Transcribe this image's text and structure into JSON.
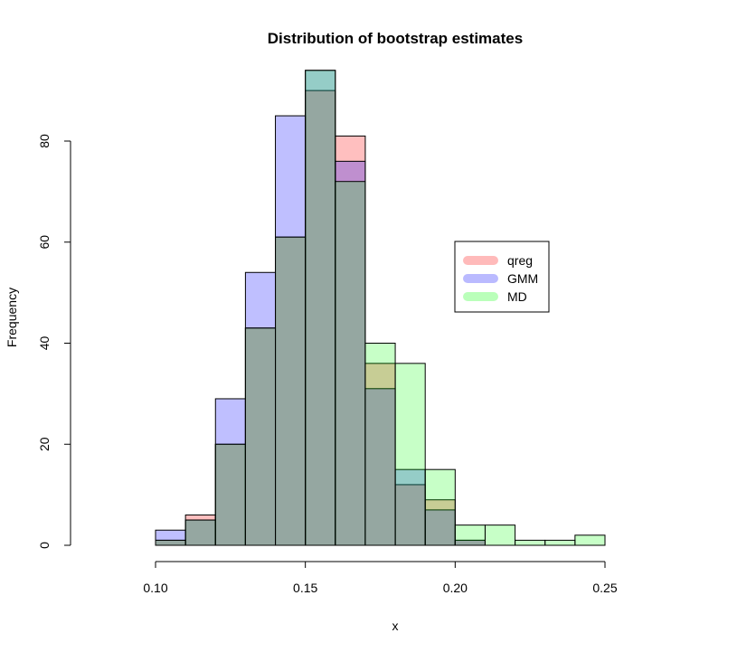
{
  "chart_data": {
    "type": "bar",
    "title": "Distribution of bootstrap estimates",
    "xlabel": "x",
    "ylabel": "Frequency",
    "bin_edges": [
      0.1,
      0.11,
      0.12,
      0.13,
      0.14,
      0.15,
      0.16,
      0.17,
      0.18,
      0.19,
      0.2,
      0.21,
      0.22,
      0.23,
      0.24,
      0.25
    ],
    "xlim": [
      0.1,
      0.25
    ],
    "ylim": [
      0,
      94
    ],
    "x_ticks": [
      "0.10",
      "0.15",
      "0.20",
      "0.25"
    ],
    "x_tick_values": [
      0.1,
      0.15,
      0.2,
      0.25
    ],
    "y_ticks": [
      "0",
      "20",
      "40",
      "60",
      "80"
    ],
    "y_tick_values": [
      0,
      20,
      40,
      60,
      80
    ],
    "series": [
      {
        "name": "qreg",
        "color": "#ff0000",
        "alpha": 0.25,
        "values": [
          1,
          6,
          20,
          43,
          61,
          90,
          81,
          36,
          12,
          9,
          1,
          0,
          0,
          0,
          0
        ]
      },
      {
        "name": "GMM",
        "color": "#0000ff",
        "alpha": 0.25,
        "values": [
          3,
          5,
          29,
          54,
          85,
          94,
          76,
          31,
          15,
          7,
          1,
          0,
          0,
          0,
          0
        ]
      },
      {
        "name": "MD",
        "color": "#00ff00",
        "alpha": 0.22,
        "values": [
          1,
          5,
          20,
          43,
          61,
          94,
          72,
          40,
          36,
          15,
          4,
          4,
          1,
          1,
          2
        ]
      }
    ],
    "legend": {
      "position": "right",
      "entries": [
        "qreg",
        "GMM",
        "MD"
      ]
    },
    "grid": false
  }
}
